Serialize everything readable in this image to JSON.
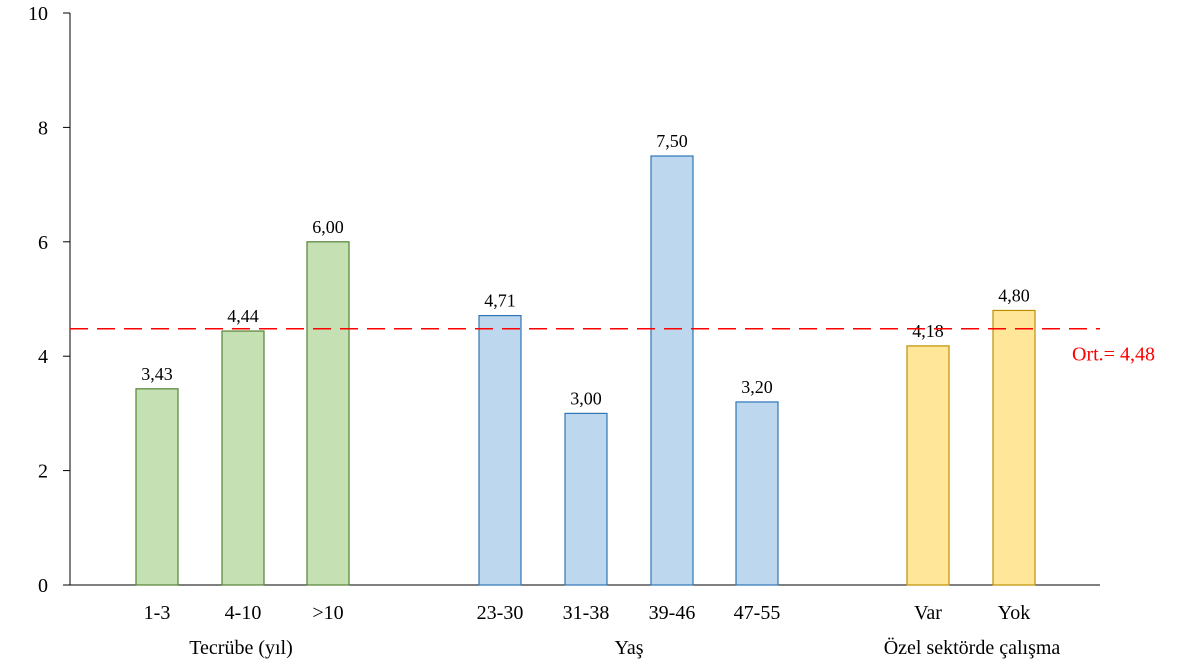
{
  "chart_data": {
    "type": "bar",
    "ylim": [
      0,
      10
    ],
    "yticks": [
      0,
      2,
      4,
      6,
      8,
      10
    ],
    "grid": false,
    "groups": [
      {
        "name": "Tecrübe (yıl)",
        "color": "#c5e0b3",
        "edge_color": "#548235",
        "categories": [
          "1-3",
          "4-10",
          ">10"
        ],
        "values": [
          3.43,
          4.44,
          6.0
        ],
        "labels": [
          "3,43",
          "4,44",
          "6,00"
        ]
      },
      {
        "name": "Yaş",
        "color": "#bdd7ee",
        "edge_color": "#2e75b6",
        "categories": [
          "23-30",
          "31-38",
          "39-46",
          "47-55"
        ],
        "values": [
          4.71,
          3.0,
          7.5,
          3.2
        ],
        "labels": [
          "4,71",
          "3,00",
          "7,50",
          "3,20"
        ]
      },
      {
        "name": "Özel sektörde çalışma",
        "color": "#ffe699",
        "edge_color": "#bf9000",
        "categories": [
          "Var",
          "Yok"
        ],
        "values": [
          4.18,
          4.8
        ],
        "labels": [
          "4,18",
          "4,80"
        ]
      }
    ],
    "reference_line": {
      "value": 4.48,
      "label": "Ort.= 4,48",
      "color": "#ff0000",
      "style": "dashed"
    }
  }
}
